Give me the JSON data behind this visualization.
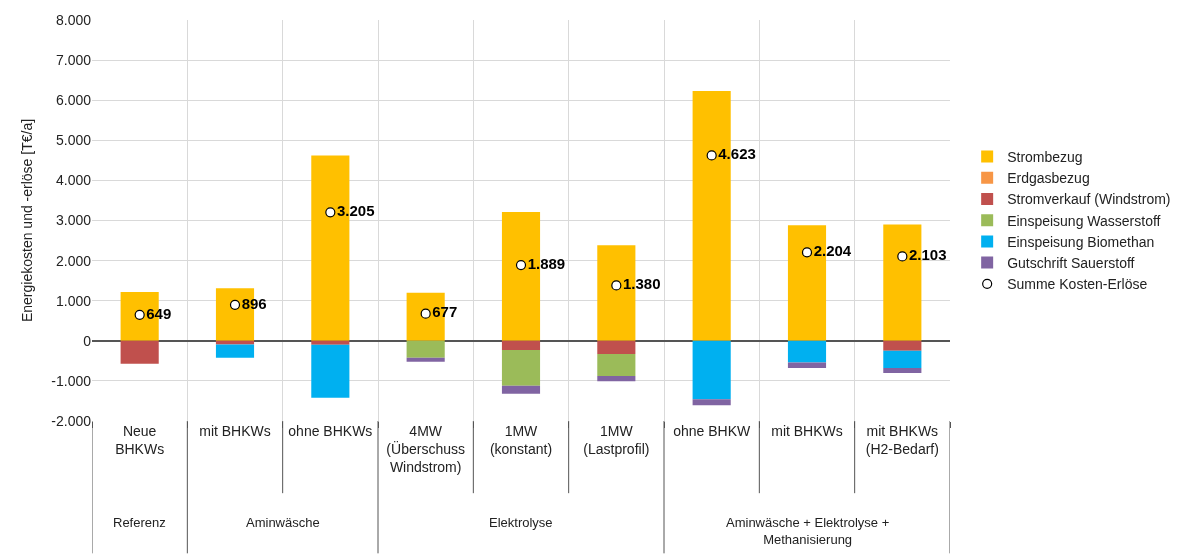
{
  "chart_data": {
    "type": "bar",
    "stacked": true,
    "ylabel": "Energiekosten und -erlöse [T€/a]",
    "categories": [
      "Neue\nBHKWs",
      "mit BHKWs",
      "ohne BHKWs",
      "4MW\n(Überschuss\nWindstrom)",
      "1MW\n(konstant)",
      "1MW\n(Lastprofil)",
      "ohne BHKW",
      "mit BHKWs",
      "mit BHKWs\n(H2-Bedarf)"
    ],
    "annotations": [
      "Referenz",
      "Aminwäsche",
      "Elektrolyse",
      "Aminwäsche + Elektrolyse +\nMethanisierung"
    ],
    "series": [
      {
        "name": "Strombezug",
        "color": "#ffc000",
        "values": [
          1220,
          1310,
          4620,
          1200,
          3210,
          2380,
          6230,
          2880,
          2900
        ]
      },
      {
        "name": "Erdgasbezug",
        "color": "#f79646",
        "values": [
          0,
          0,
          0,
          0,
          0,
          0,
          0,
          0,
          0
        ]
      },
      {
        "name": "Stromverkauf (Windstrom)",
        "color": "#c0504d",
        "values": [
          -570,
          -90,
          -100,
          0,
          -230,
          -330,
          0,
          0,
          -250
        ]
      },
      {
        "name": "Einspeisung Wasserstoff",
        "color": "#9bbb59",
        "values": [
          0,
          0,
          0,
          -420,
          -890,
          -550,
          0,
          0,
          0
        ]
      },
      {
        "name": "Einspeisung Biomethan",
        "color": "#00b0f0",
        "values": [
          0,
          -330,
          -1320,
          0,
          0,
          0,
          -1460,
          -540,
          -430
        ]
      },
      {
        "name": "Gutschrift Sauerstoff",
        "color": "#8064a2",
        "values": [
          0,
          0,
          0,
          -100,
          -200,
          -130,
          -150,
          -140,
          -120
        ]
      },
      {
        "name": "Summe Kosten-Erlöse",
        "type": "scatter",
        "marker": "circle",
        "color": "#ffffff",
        "values": [
          649,
          896,
          3205,
          677,
          1889,
          1380,
          4623,
          2204,
          2103
        ],
        "value_labels": [
          "649",
          "896",
          "3.205",
          "677",
          "1.889",
          "1.380",
          "4.623",
          "2.204",
          "2.103"
        ]
      }
    ],
    "ylim": [
      -2000,
      8000
    ],
    "yticks": [
      {
        "value": -2000,
        "label": "-2.000"
      },
      {
        "value": -1000,
        "label": "-1.000"
      },
      0,
      {
        "value": 1000,
        "label": "1.000"
      },
      {
        "value": 2000,
        "label": "2.000"
      },
      {
        "value": 3000,
        "label": "3.000"
      },
      {
        "value": 4000,
        "label": "4.000"
      },
      {
        "value": 5000,
        "label": "5.000"
      },
      {
        "value": 6000,
        "label": "6.000"
      },
      {
        "value": 7000,
        "label": "7.000"
      },
      {
        "value": 8000,
        "label": "8.000"
      }
    ],
    "grid": true,
    "legend": "right"
  }
}
